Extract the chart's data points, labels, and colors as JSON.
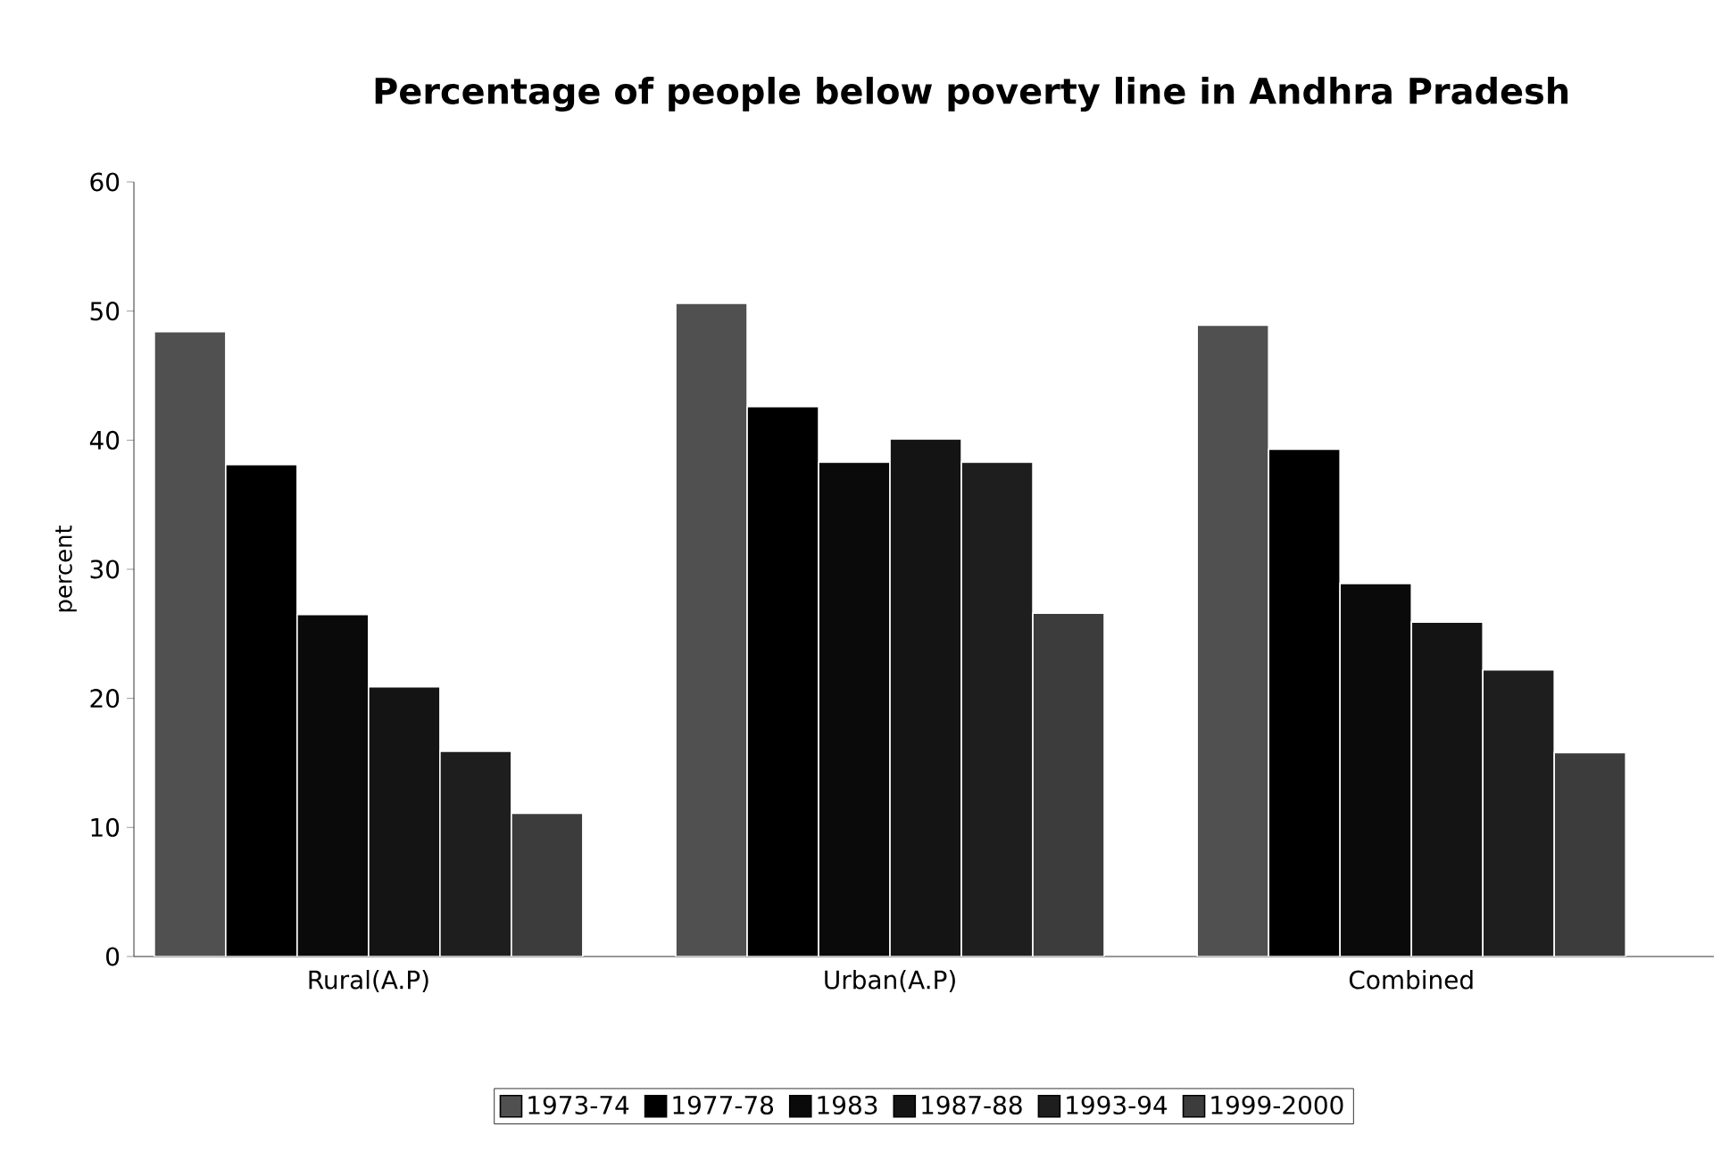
{
  "chart_data": {
    "type": "bar",
    "title": "Percentage of people below poverty line in Andhra Pradesh",
    "ylabel": "percent",
    "categories": [
      "Rural(A.P)",
      "Urban(A.P)",
      "Combined"
    ],
    "series": [
      {
        "name": "1973-74",
        "color": "#505050",
        "values": [
          48.4,
          50.6,
          48.9
        ]
      },
      {
        "name": "1977-78",
        "color": "#000000",
        "values": [
          38.1,
          42.6,
          39.3
        ]
      },
      {
        "name": "1983",
        "color": "#0a0a0a",
        "values": [
          26.5,
          38.3,
          28.9
        ]
      },
      {
        "name": "1987-88",
        "color": "#141414",
        "values": [
          20.9,
          40.1,
          25.9
        ]
      },
      {
        "name": "1993-94",
        "color": "#1e1e1e",
        "values": [
          15.9,
          38.3,
          22.2
        ]
      },
      {
        "name": "1999-2000",
        "color": "#3c3c3c",
        "values": [
          11.1,
          26.6,
          15.8
        ]
      }
    ],
    "ylim": [
      0,
      60
    ],
    "yticks": [
      0,
      10,
      20,
      30,
      40,
      50,
      60
    ],
    "grid": false,
    "legend": "bottom"
  }
}
